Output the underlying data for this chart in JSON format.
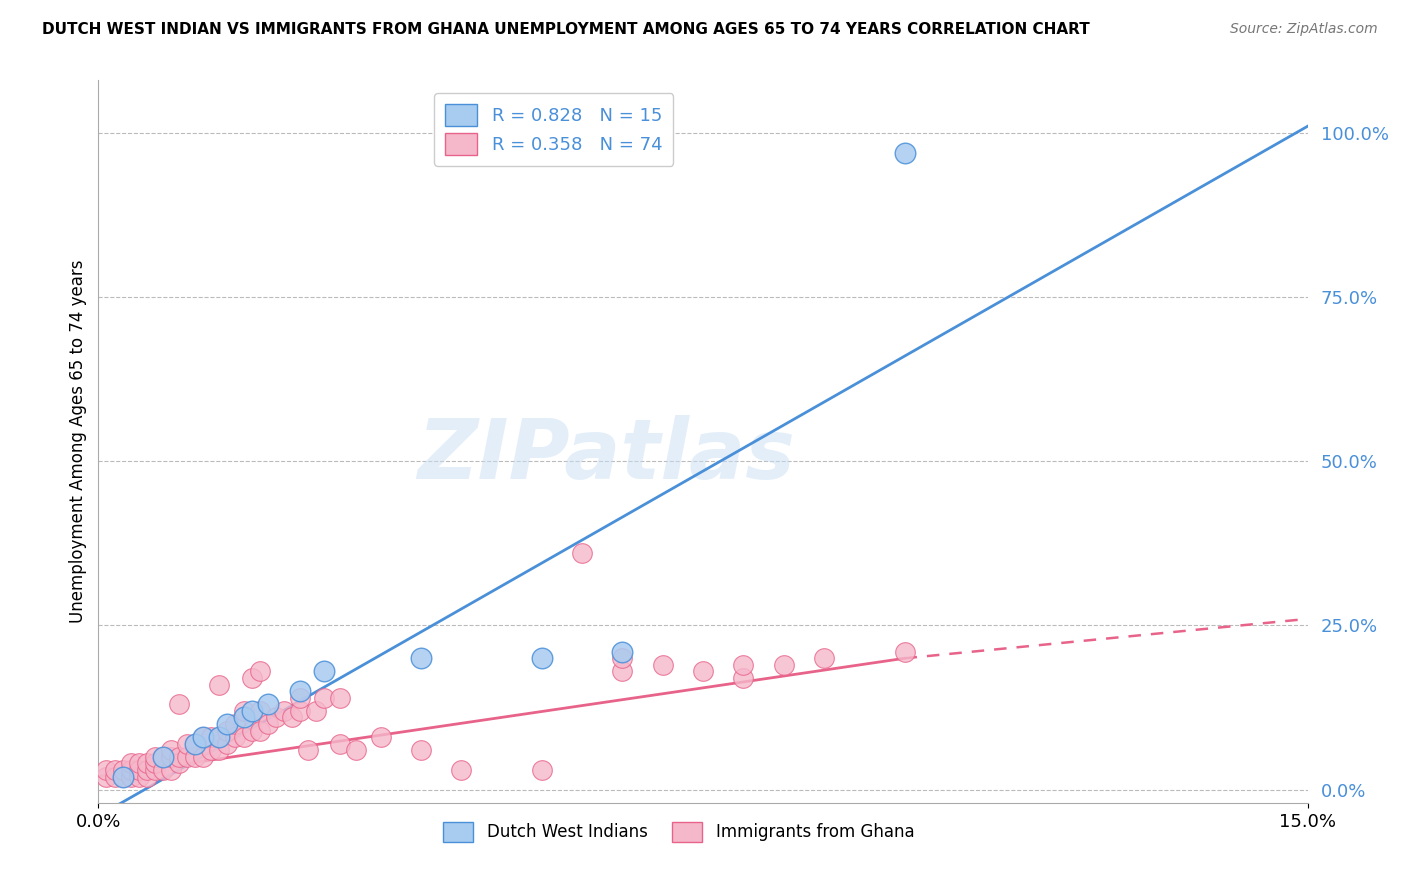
{
  "title": "DUTCH WEST INDIAN VS IMMIGRANTS FROM GHANA UNEMPLOYMENT AMONG AGES 65 TO 74 YEARS CORRELATION CHART",
  "source": "Source: ZipAtlas.com",
  "ylabel": "Unemployment Among Ages 65 to 74 years",
  "xlim": [
    0.0,
    0.15
  ],
  "ylim": [
    -2.0,
    108.0
  ],
  "grid_y": [
    0,
    25,
    50,
    75,
    100
  ],
  "blue_color": "#A8CBF0",
  "blue_line_color": "#4A90D9",
  "pink_color": "#F5B8CB",
  "pink_line_color": "#E8638A",
  "r_blue": "0.828",
  "n_blue": "15",
  "r_pink": "0.358",
  "n_pink": "74",
  "legend_label_blue": "Dutch West Indians",
  "legend_label_pink": "Immigrants from Ghana",
  "watermark": "ZIPatlas",
  "blue_scatter_x": [
    0.003,
    0.008,
    0.012,
    0.013,
    0.015,
    0.016,
    0.018,
    0.019,
    0.021,
    0.025,
    0.028,
    0.04,
    0.055,
    0.065,
    0.1
  ],
  "blue_scatter_y": [
    2,
    5,
    7,
    8,
    8,
    10,
    11,
    12,
    13,
    15,
    18,
    20,
    20,
    21,
    97
  ],
  "pink_scatter_x": [
    0.001,
    0.001,
    0.002,
    0.002,
    0.003,
    0.003,
    0.004,
    0.004,
    0.004,
    0.005,
    0.005,
    0.005,
    0.006,
    0.006,
    0.006,
    0.007,
    0.007,
    0.007,
    0.008,
    0.008,
    0.009,
    0.009,
    0.009,
    0.01,
    0.01,
    0.01,
    0.011,
    0.011,
    0.012,
    0.012,
    0.013,
    0.013,
    0.014,
    0.014,
    0.015,
    0.015,
    0.015,
    0.016,
    0.016,
    0.017,
    0.017,
    0.018,
    0.018,
    0.019,
    0.019,
    0.02,
    0.02,
    0.02,
    0.021,
    0.022,
    0.023,
    0.024,
    0.025,
    0.025,
    0.026,
    0.027,
    0.028,
    0.03,
    0.03,
    0.032,
    0.035,
    0.04,
    0.045,
    0.055,
    0.06,
    0.065,
    0.065,
    0.07,
    0.075,
    0.08,
    0.08,
    0.085,
    0.09,
    0.1
  ],
  "pink_scatter_y": [
    2,
    3,
    2,
    3,
    2,
    3,
    2,
    3,
    4,
    2,
    3,
    4,
    2,
    3,
    4,
    3,
    4,
    5,
    3,
    5,
    3,
    5,
    6,
    4,
    5,
    13,
    5,
    7,
    5,
    7,
    5,
    8,
    6,
    8,
    6,
    8,
    16,
    7,
    9,
    8,
    10,
    8,
    12,
    9,
    17,
    9,
    12,
    18,
    10,
    11,
    12,
    11,
    12,
    14,
    6,
    12,
    14,
    7,
    14,
    6,
    8,
    6,
    3,
    3,
    36,
    18,
    20,
    19,
    18,
    17,
    19,
    19,
    20,
    21
  ],
  "blue_line_x0": 0.0,
  "blue_line_x1": 0.15,
  "blue_line_y0": -4.0,
  "blue_line_y1": 101.0,
  "pink_line_x0": 0.0,
  "pink_line_x1": 0.1,
  "pink_line_dash_x0": 0.1,
  "pink_line_dash_x1": 0.15,
  "pink_line_y0": 2.0,
  "pink_line_y1": 20.0,
  "pink_line_dash_y0": 20.0,
  "pink_line_dash_y1": 26.0
}
